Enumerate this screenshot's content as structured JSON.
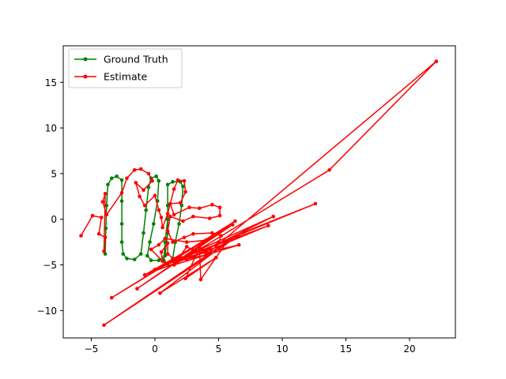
{
  "chart_data": {
    "type": "line",
    "title": "",
    "xlabel": "",
    "ylabel": "",
    "xlim": [
      -7.2,
      23.6
    ],
    "ylim": [
      -13,
      19
    ],
    "xticks": [
      -5,
      0,
      5,
      10,
      15,
      20
    ],
    "yticks": [
      -10,
      -5,
      0,
      5,
      10,
      15
    ],
    "grid": false,
    "legend_position": "upper-left",
    "series": [
      {
        "name": "Ground Truth",
        "color": "#008000",
        "marker": "point",
        "points": [
          [
            -3.9,
            -3.8
          ],
          [
            -3.85,
            -1
          ],
          [
            -3.8,
            1.5
          ],
          [
            -3.7,
            3.8
          ],
          [
            -3.4,
            4.5
          ],
          [
            -3.0,
            4.7
          ],
          [
            -2.6,
            4.3
          ],
          [
            -2.6,
            2
          ],
          [
            -2.6,
            -0.5
          ],
          [
            -2.6,
            -2.5
          ],
          [
            -2.5,
            -3.8
          ],
          [
            -2.2,
            -4.3
          ],
          [
            -1.6,
            -4.4
          ],
          [
            -1.1,
            -3.8
          ],
          [
            -0.9,
            -1.5
          ],
          [
            -0.7,
            1
          ],
          [
            -0.5,
            3.5
          ],
          [
            -0.3,
            4.5
          ],
          [
            0.1,
            4.7
          ],
          [
            0.3,
            4.2
          ],
          [
            0.2,
            2
          ],
          [
            -0.1,
            -0.5
          ],
          [
            -0.4,
            -2.5
          ],
          [
            -0.6,
            -4.0
          ],
          [
            -0.3,
            -4.5
          ],
          [
            0.3,
            -4.5
          ],
          [
            0.8,
            -4.0
          ],
          [
            1.0,
            -1.5
          ],
          [
            1.0,
            1.5
          ],
          [
            1.0,
            3.8
          ],
          [
            1.4,
            4.1
          ],
          [
            2.0,
            4.1
          ],
          [
            2.2,
            3.6
          ],
          [
            2.1,
            1.5
          ],
          [
            1.9,
            -0.5
          ],
          [
            1.6,
            -2.5
          ],
          [
            1.4,
            -4.3
          ],
          [
            1.0,
            -4.9
          ],
          [
            0.7,
            -4.5
          ],
          [
            0.8,
            -2.5
          ],
          [
            1.0,
            0
          ]
        ]
      },
      {
        "name": "Estimate",
        "color": "#ff0000",
        "marker": "point",
        "points": [
          [
            -5.8,
            -1.8
          ],
          [
            -4.9,
            0.4
          ],
          [
            -4.2,
            0.2
          ],
          [
            -4.4,
            -1.6
          ],
          [
            -3.9,
            -2.0
          ],
          [
            -4.0,
            -3.5
          ],
          [
            -3.9,
            2.8
          ],
          [
            -4.1,
            1.9
          ],
          [
            -3.8,
            0.5
          ],
          [
            -2.6,
            2.9
          ],
          [
            -2.2,
            4.5
          ],
          [
            -1.6,
            5.4
          ],
          [
            -1.1,
            5.5
          ],
          [
            -0.5,
            5.0
          ],
          [
            -0.2,
            4.2
          ],
          [
            -0.9,
            3.2
          ],
          [
            -1.5,
            4.0
          ],
          [
            -1.2,
            2.5
          ],
          [
            -0.8,
            1.5
          ],
          [
            0.0,
            2.6
          ],
          [
            0.3,
            1.0
          ],
          [
            0.5,
            0.2
          ],
          [
            0.6,
            -0.9
          ],
          [
            1.0,
            0.6
          ],
          [
            1.5,
            3.3
          ],
          [
            1.8,
            4.3
          ],
          [
            2.3,
            4.2
          ],
          [
            2.4,
            3.0
          ],
          [
            2.0,
            1.8
          ],
          [
            1.2,
            1.7
          ],
          [
            1.5,
            0.5
          ],
          [
            2.7,
            1.3
          ],
          [
            3.5,
            1.2
          ],
          [
            4.5,
            1.6
          ],
          [
            5.1,
            1.3
          ],
          [
            5.1,
            0.4
          ],
          [
            4.3,
            0.1
          ],
          [
            3.0,
            0.3
          ],
          [
            2.2,
            -0.2
          ],
          [
            1.2,
            0.3
          ],
          [
            1.0,
            -1.3
          ],
          [
            1.4,
            -2.5
          ],
          [
            2.3,
            -2.0
          ],
          [
            3.0,
            -1.6
          ],
          [
            4.5,
            -1.5
          ],
          [
            5.2,
            -1.8
          ],
          [
            5.0,
            -2.5
          ],
          [
            4.3,
            -3.2
          ],
          [
            3.0,
            -3.4
          ],
          [
            2.5,
            -3.0
          ],
          [
            2.0,
            -4.0
          ],
          [
            1.6,
            -4.5
          ],
          [
            1.0,
            -3.8
          ],
          [
            1.0,
            -2.6
          ],
          [
            0.5,
            -3.6
          ],
          [
            0.6,
            -4.6
          ],
          [
            -0.3,
            -3.3
          ],
          [
            0.3,
            -2.8
          ],
          [
            0.8,
            -2.1
          ],
          [
            2.5,
            -2.5
          ],
          [
            4.0,
            -2.3
          ],
          [
            -3.4,
            -8.6
          ],
          [
            6.3,
            -0.2
          ],
          [
            -1.4,
            -7.6
          ],
          [
            6.1,
            -0.6
          ],
          [
            -0.8,
            -6.1
          ],
          [
            5.5,
            -2.7
          ],
          [
            0.4,
            -8.1
          ],
          [
            4.8,
            -4.2
          ],
          [
            2.4,
            -6.5
          ],
          [
            3.5,
            -3.1
          ],
          [
            3.6,
            -6.6
          ],
          [
            5.7,
            -2.4
          ],
          [
            -4.0,
            -11.6
          ],
          [
            7.0,
            -1.4
          ],
          [
            12.6,
            1.7
          ],
          [
            0.0,
            -5.5
          ],
          [
            9.3,
            0.3
          ],
          [
            2.5,
            -4.4
          ],
          [
            8.9,
            -0.7
          ],
          [
            2.0,
            -4.3
          ],
          [
            6.6,
            -2.8
          ],
          [
            1.5,
            -5.0
          ],
          [
            13.7,
            5.4
          ],
          [
            22.1,
            17.3
          ],
          [
            4.0,
            -3.9
          ],
          [
            0.8,
            -4.9
          ]
        ]
      }
    ]
  }
}
